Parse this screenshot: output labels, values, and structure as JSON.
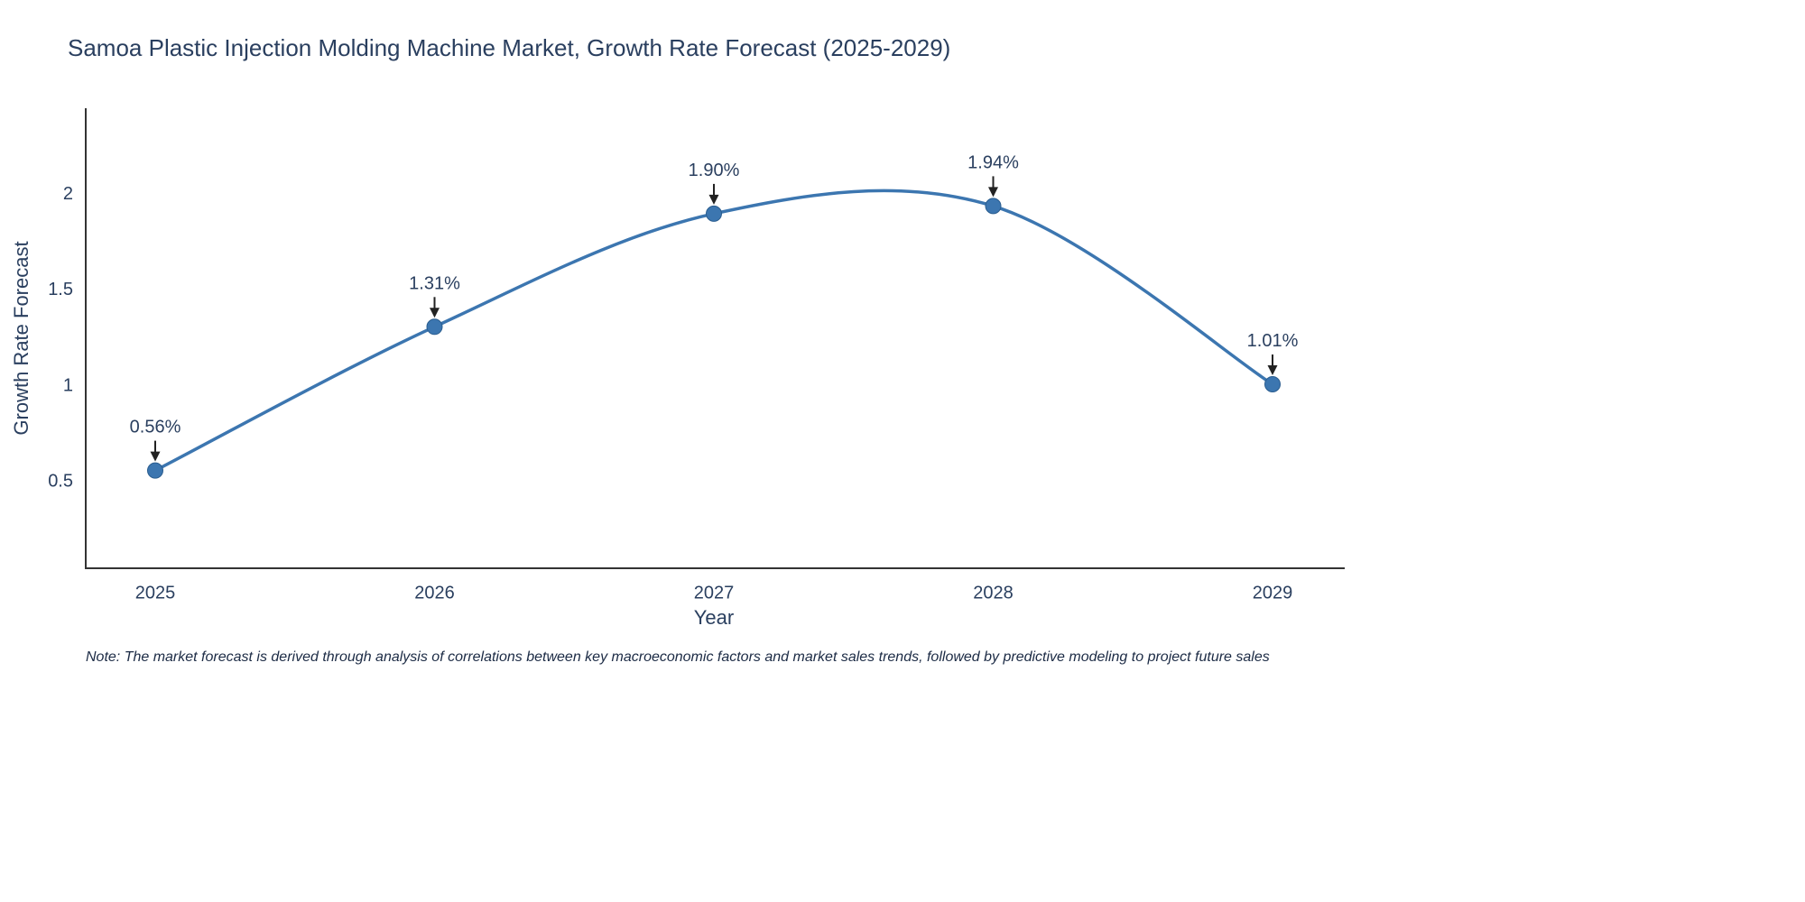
{
  "chart_data": {
    "type": "line",
    "title": "Samoa Plastic Injection Molding Machine Market, Growth Rate Forecast (2025-2029)",
    "xlabel": "Year",
    "ylabel": "Growth Rate Forecast",
    "categories": [
      "2025",
      "2026",
      "2027",
      "2028",
      "2029"
    ],
    "values": [
      0.56,
      1.31,
      1.9,
      1.94,
      1.01
    ],
    "point_labels": [
      "0.56%",
      "1.31%",
      "1.90%",
      "1.94%",
      "1.01%"
    ],
    "yticks": [
      0.5,
      1,
      1.5,
      2
    ],
    "ytick_labels": [
      "0.5",
      "1",
      "1.5",
      "2"
    ],
    "ylim": [
      0.05,
      2.45
    ],
    "line_shape": "spline",
    "grid": false,
    "legend": "none",
    "line_color": "#3c76b0",
    "marker_color": "#3c76b0",
    "marker_edge_color": "#2a5d8f",
    "axis_color": "#333333",
    "text_color": "#2a3f5f",
    "arrow_color": "#222222"
  },
  "note": "Note: The market forecast is derived through analysis of correlations between key macroeconomic factors and market sales trends, followed by predictive modeling to project future sales"
}
